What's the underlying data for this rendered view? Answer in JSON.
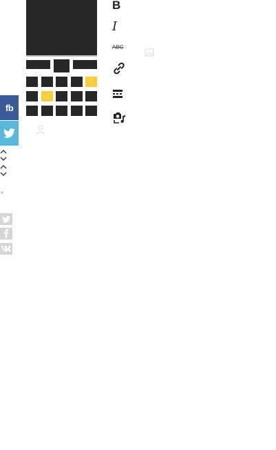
{
  "share": {
    "facebook_label": "fb",
    "twitter_icon": "twitter-bird-icon"
  },
  "nav_arrows": [
    "chevron-up-icon",
    "chevron-down-icon",
    "chevron-up-icon",
    "chevron-down-icon"
  ],
  "social_small": [
    "twitter-icon",
    "facebook-icon",
    "vk-icon"
  ],
  "gallery": {
    "rows": 3,
    "cols": 5,
    "highlighted_cells": [
      4,
      6
    ]
  },
  "toolbar": {
    "bold_label": "B",
    "italic_label": "I",
    "strike_label": "ABC",
    "tools": [
      "bold-icon",
      "italic-icon",
      "strikethrough-icon",
      "link-icon",
      "page-break-icon",
      "media-icon"
    ]
  },
  "colors": {
    "facebook": "#3b5a9a",
    "twitter": "#5bb8dd",
    "accent": "#f7cf3b",
    "dark": "#272727",
    "muted": "#d6d6d6"
  }
}
